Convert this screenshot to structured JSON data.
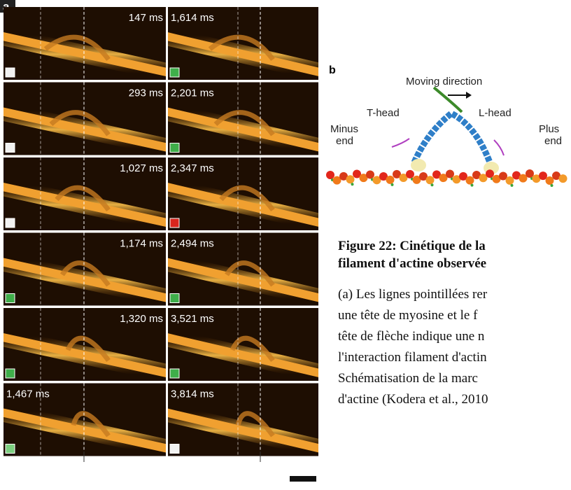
{
  "figure": {
    "panel_a": {
      "label": "a",
      "frames": [
        {
          "time": "147 ms",
          "marker": "#f2f2f2"
        },
        {
          "time": "1,614 ms",
          "marker": "#3fae4a"
        },
        {
          "time": "293 ms",
          "marker": "#f2f2f2"
        },
        {
          "time": "2,201 ms",
          "marker": "#3fae4a"
        },
        {
          "time": "1,027 ms",
          "marker": "#f2f2f2"
        },
        {
          "time": "2,347 ms",
          "marker": "#d9251d"
        },
        {
          "time": "1,174 ms",
          "marker": "#3fae4a"
        },
        {
          "time": "2,494 ms",
          "marker": "#3fae4a"
        },
        {
          "time": "1,320 ms",
          "marker": "#3fae4a"
        },
        {
          "time": "3,521 ms",
          "marker": "#3fae4a"
        },
        {
          "time": "1,467 ms",
          "marker": "#7ccf7f"
        },
        {
          "time": "3,814 ms",
          "marker": "#f2f2f2"
        }
      ]
    },
    "panel_b": {
      "label": "b",
      "direction": "Moving direction",
      "t_head": "T-head",
      "l_head": "L-head",
      "minus": [
        "Minus",
        "end"
      ],
      "plus": [
        "Plus",
        "end"
      ]
    },
    "caption": {
      "title_lines": [
        "Figure 22: Cinétique de la",
        "filament d'actine observée"
      ],
      "body_lines": [
        "(a) Les lignes pointillées rer",
        "une tête de myosine et le f",
        "tête de flèche indique une n",
        "l'interaction filament d'actin",
        "Schématisation de la marc",
        "d'actine (Kodera et al., 2010"
      ]
    }
  }
}
